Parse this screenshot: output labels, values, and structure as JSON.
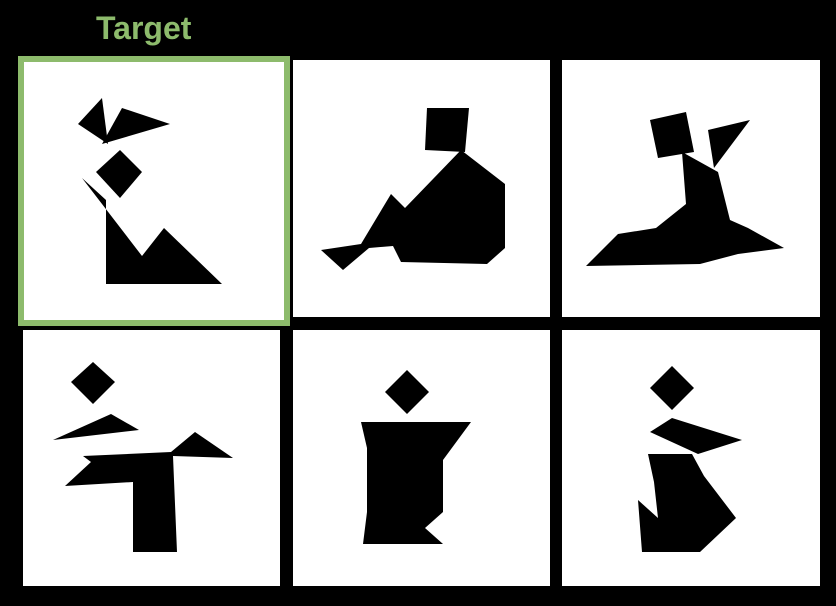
{
  "header": {
    "target_label": "Target"
  },
  "colors": {
    "background": "#000000",
    "card_fill": "#ffffff",
    "target_border": "#8dbb6c",
    "shape_fill": "#000000"
  },
  "cards": [
    {
      "figure": "kneeling-figure-target",
      "is_target": true
    },
    {
      "figure": "sitting-figure-leaning-back"
    },
    {
      "figure": "reclining-figure-arm-raised"
    },
    {
      "figure": "running-figure-leg-out"
    },
    {
      "figure": "standing-figure-block-body"
    },
    {
      "figure": "kneeling-figure-option"
    }
  ]
}
